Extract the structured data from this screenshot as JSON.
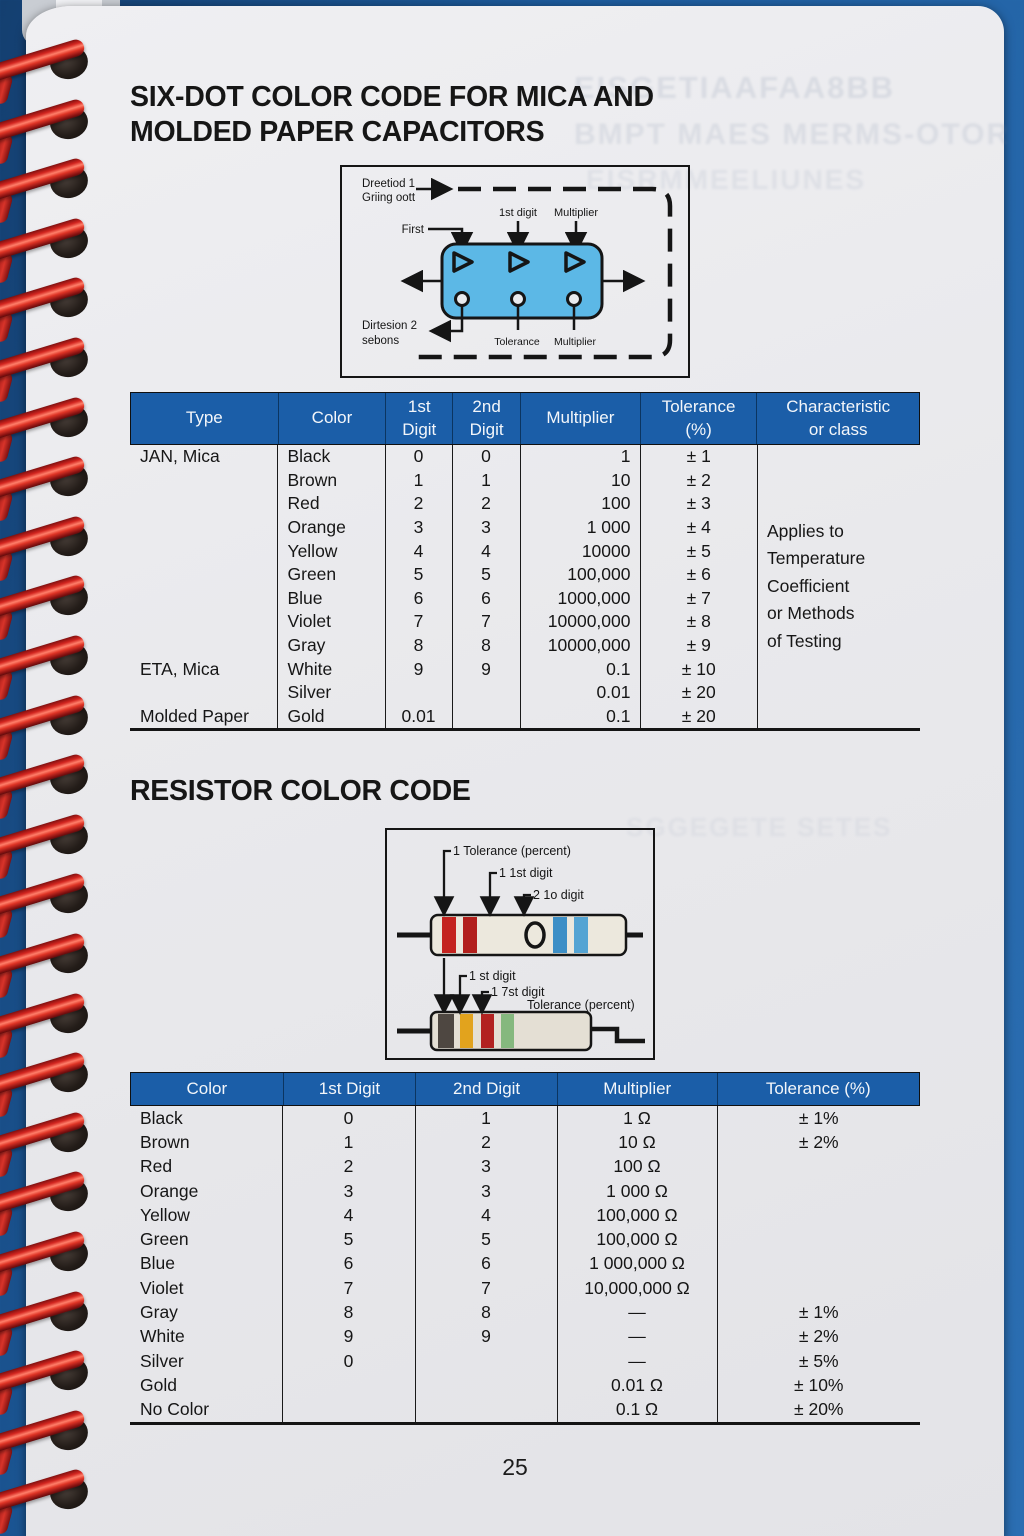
{
  "page": {
    "number": "25"
  },
  "colors": {
    "table_header_bg": "#1b5ea8",
    "spiral_red": "#d3251f",
    "cover_blue": "#1d5c9e",
    "capacitor_body_blue": "#5cb8e6",
    "paper": "#e9e9ec"
  },
  "ghost_text": {
    "line1": "EISGETIAAFAA8BB",
    "line2": "BMPT MAES MERMS-OTOR",
    "line3": "EISRMMEELIUNES",
    "line4": "SGGEGETE SETES"
  },
  "section1": {
    "title": "SIX-DOT COLOR CODE FOR MICA AND\nMOLDED PAPER CAPACITORS",
    "diagram": {
      "reading_label_line1": "Dreetiod 1",
      "reading_label_line2": "Griing oott",
      "first_label": "First",
      "first_digit_label": "1st digit",
      "multiplier_top_label": "Multiplier",
      "direction2_label_line1": "Dirtesion 2",
      "direction2_label_line2": "sebons",
      "tolerance_label": "Tolerance",
      "multiplier_bottom_label": "Multiplier"
    },
    "table": {
      "headers": [
        "Type",
        "Color",
        "1st\nDigit",
        "2nd\nDigit",
        "Multiplier",
        "Tolerance\n(%)",
        "Characteristic\nor class"
      ],
      "characteristic_note": "Applies to\nTemperature\nCoefficient\nor Methods\nof Testing",
      "rows": [
        {
          "type": "JAN, Mica",
          "color": "Black",
          "d1": "0",
          "d2": "0",
          "mult": "1",
          "tol": "± 1"
        },
        {
          "type": "",
          "color": "Brown",
          "d1": "1",
          "d2": "1",
          "mult": "10",
          "tol": "± 2"
        },
        {
          "type": "",
          "color": "Red",
          "d1": "2",
          "d2": "2",
          "mult": "100",
          "tol": "± 3"
        },
        {
          "type": "",
          "color": "Orange",
          "d1": "3",
          "d2": "3",
          "mult": "1 000",
          "tol": "± 4"
        },
        {
          "type": "",
          "color": "Yellow",
          "d1": "4",
          "d2": "4",
          "mult": "10000",
          "tol": "± 5"
        },
        {
          "type": "",
          "color": "Green",
          "d1": "5",
          "d2": "5",
          "mult": "100,000",
          "tol": "± 6"
        },
        {
          "type": "",
          "color": "Blue",
          "d1": "6",
          "d2": "6",
          "mult": "1000,000",
          "tol": "± 7"
        },
        {
          "type": "",
          "color": "Violet",
          "d1": "7",
          "d2": "7",
          "mult": "10000,000",
          "tol": "± 8"
        },
        {
          "type": "",
          "color": "Gray",
          "d1": "8",
          "d2": "8",
          "mult": "10000,000",
          "tol": "± 9"
        },
        {
          "type": "ETA, Mica",
          "color": "White",
          "d1": "9",
          "d2": "9",
          "mult": "0.1",
          "tol": "± 10"
        },
        {
          "type": "",
          "color": "Silver",
          "d1": "",
          "d2": "",
          "mult": "0.01",
          "tol": "± 20"
        },
        {
          "type": "Molded Paper",
          "color": "Gold",
          "d1": "0.01",
          "d2": "",
          "mult": "0.1",
          "tol": "± 20"
        }
      ]
    }
  },
  "section2": {
    "title": "RESISTOR COLOR CODE",
    "diagram": {
      "top_tolerance_label": "1 Tolerance (percent)",
      "top_first_digit_label": "1 1st digit",
      "top_second_digit_label": "2 1o digit",
      "bottom_first_digit_label": "1 st digit",
      "bottom_second_digit_label": "1 7st digit",
      "bottom_tolerance_label": "Tolerance (percent)",
      "upper_resistor_bands": [
        "red",
        "red",
        "0",
        "blue",
        "blue"
      ],
      "lower_resistor_bands": [
        "black",
        "yellow",
        "red",
        "green"
      ]
    },
    "table": {
      "headers": [
        "Color",
        "1st Digit",
        "2nd Digit",
        "Multiplier",
        "Tolerance (%)"
      ],
      "rows": [
        {
          "color": "Black",
          "d1": "0",
          "d2": "1",
          "mult": "1 Ω",
          "tol": "± 1%"
        },
        {
          "color": "Brown",
          "d1": "1",
          "d2": "2",
          "mult": "10 Ω",
          "tol": "± 2%"
        },
        {
          "color": "Red",
          "d1": "2",
          "d2": "3",
          "mult": "100 Ω",
          "tol": ""
        },
        {
          "color": "Orange",
          "d1": "3",
          "d2": "3",
          "mult": "1 000 Ω",
          "tol": ""
        },
        {
          "color": "Yellow",
          "d1": "4",
          "d2": "4",
          "mult": "100,000 Ω",
          "tol": ""
        },
        {
          "color": "Green",
          "d1": "5",
          "d2": "5",
          "mult": "100,000 Ω",
          "tol": ""
        },
        {
          "color": "Blue",
          "d1": "6",
          "d2": "6",
          "mult": "1 000,000 Ω",
          "tol": ""
        },
        {
          "color": "Violet",
          "d1": "7",
          "d2": "7",
          "mult": "10,000,000 Ω",
          "tol": ""
        },
        {
          "color": "Gray",
          "d1": "8",
          "d2": "8",
          "mult": "—",
          "tol": "± 1%"
        },
        {
          "color": "White",
          "d1": "9",
          "d2": "9",
          "mult": "—",
          "tol": "± 2%"
        },
        {
          "color": "Silver",
          "d1": "0",
          "d2": "",
          "mult": "—",
          "tol": "± 5%"
        },
        {
          "color": "Gold",
          "d1": "",
          "d2": "",
          "mult": "0.01 Ω",
          "tol": "± 10%"
        },
        {
          "color": "No Color",
          "d1": "",
          "d2": "",
          "mult": "0.1 Ω",
          "tol": "± 20%"
        }
      ]
    }
  }
}
